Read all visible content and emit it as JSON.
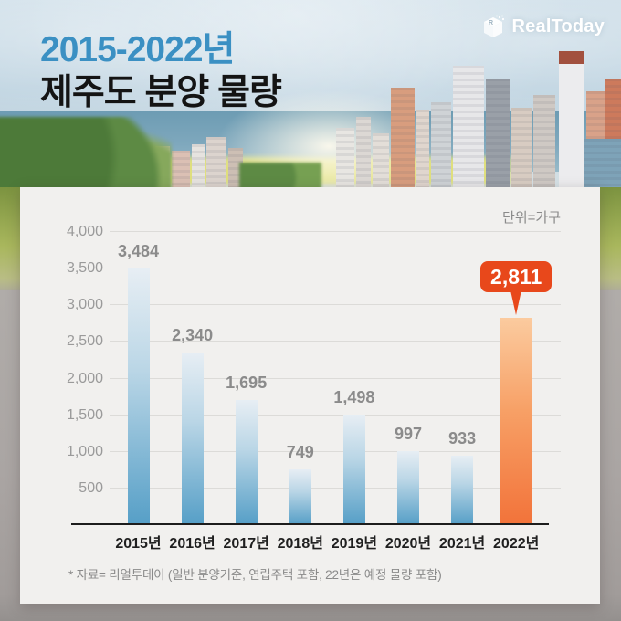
{
  "header": {
    "title_line1": "2015-2022년",
    "title_line2": "제주도 분양 물량",
    "logo_text": "RealToday"
  },
  "chart": {
    "unit_label": "단위=가구",
    "footnote": "* 자료= 리얼투데이 (일반 분양기준, 연립주택 포함, 22년은 예정 물량 포함)"
  },
  "chart_data": {
    "type": "bar",
    "title": "2015-2022년 제주도 분양 물량",
    "unit": "가구",
    "categories": [
      "2015년",
      "2016년",
      "2017년",
      "2018년",
      "2019년",
      "2020년",
      "2021년",
      "2022년"
    ],
    "values": [
      3484,
      2340,
      1695,
      749,
      1498,
      997,
      933,
      2811
    ],
    "value_labels": [
      "3,484",
      "2,340",
      "1,695",
      "749",
      "1,498",
      "997",
      "933",
      "2,811"
    ],
    "highlight_index": 7,
    "ylim": [
      0,
      4000
    ],
    "ytick_interval": 500,
    "ytick_labels": [
      "4,000",
      "3,500",
      "3,000",
      "2,500",
      "2,000",
      "1,500",
      "1,000",
      "500"
    ],
    "grid": true,
    "legend": "none",
    "colors": {
      "bar_top": "#e7eef4",
      "bar_bottom": "#569fc7",
      "highlight_top": "#fbcb9f",
      "highlight_bottom": "#f2733a",
      "highlight_badge": "#e8481b",
      "title_accent": "#3b90c3",
      "grid_color": "#dcdbd8",
      "card_bg": "#f1f0ee"
    }
  }
}
